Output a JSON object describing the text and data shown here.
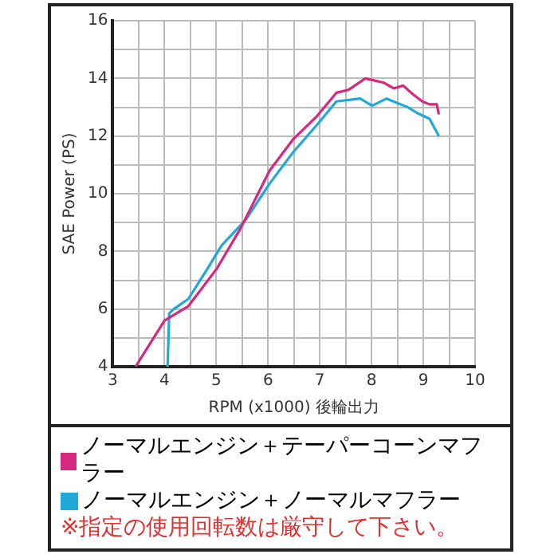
{
  "chart_data": {
    "type": "line",
    "xlabel": "RPM (x1000) 後輪出力",
    "ylabel": "SAE Power (PS)",
    "xlim": [
      3,
      10
    ],
    "xticks": [
      3,
      {
        "value": 3.5,
        "label": null
      },
      4,
      {
        "value": 4.5,
        "label": null
      },
      5,
      {
        "value": 5.5,
        "label": null
      },
      6,
      {
        "value": 6.5,
        "label": null
      },
      7,
      {
        "value": 7.5,
        "label": null
      },
      8,
      {
        "value": 8.5,
        "label": null
      },
      9,
      {
        "value": 9.5,
        "label": null
      },
      10
    ],
    "ylim": [
      4,
      16
    ],
    "yticks": [
      4,
      {
        "value": 5,
        "label": null
      },
      6,
      {
        "value": 7,
        "label": null
      },
      8,
      {
        "value": 9,
        "label": null
      },
      10,
      {
        "value": 11,
        "label": null
      },
      12,
      {
        "value": 13,
        "label": null
      },
      14,
      {
        "value": 15,
        "label": null
      },
      16
    ],
    "grid": true,
    "legend": "bottom",
    "marker": "none",
    "line_style": "solid",
    "series": [
      {
        "name": "ノーマルエンジン＋テーパーコーンマフラー",
        "color": "#d6287f",
        "x": [
          3.44,
          4.0,
          4.46,
          5.01,
          5.47,
          6.03,
          6.49,
          6.95,
          7.32,
          7.55,
          7.88,
          8.24,
          8.43,
          8.61,
          8.8,
          8.98,
          9.12,
          9.26,
          9.3
        ],
        "values": [
          4,
          5.6,
          6.1,
          7.4,
          8.8,
          10.8,
          11.9,
          12.7,
          13.5,
          13.6,
          14.0,
          13.85,
          13.65,
          13.75,
          13.45,
          13.2,
          13.1,
          13.1,
          12.75
        ]
      },
      {
        "name": "ノーマルエンジン＋ノーマルマフラー",
        "color": "#1fa8d8",
        "x": [
          4.06,
          4.09,
          4.18,
          4.46,
          4.83,
          5.1,
          5.57,
          6.03,
          6.49,
          6.95,
          7.32,
          7.78,
          8.01,
          8.29,
          8.7,
          8.88,
          9.12,
          9.3
        ],
        "values": [
          4,
          5.85,
          6.0,
          6.35,
          7.4,
          8.2,
          9.1,
          10.35,
          11.45,
          12.4,
          13.2,
          13.3,
          13.05,
          13.3,
          13.0,
          12.8,
          12.6,
          12.0
        ]
      }
    ],
    "annotations": [
      "※指定の使用回転数は厳守して下さい。"
    ]
  }
}
